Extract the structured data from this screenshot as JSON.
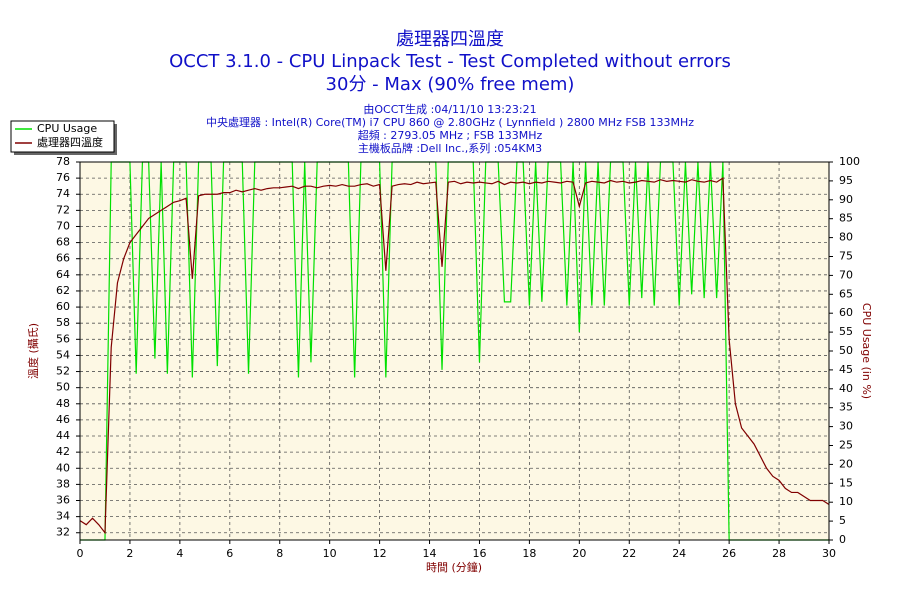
{
  "chart_data": {
    "type": "line",
    "title": "處理器四溫度",
    "subtitle": "OCCT 3.1.0 - CPU Linpack Test - Test Completed without errors",
    "subtitle2": "30分 - Max (90% free mem)",
    "info": [
      "由OCCT生成 :04/11/10 13:23:21",
      "中央處理器 : Intel(R) Core(TM) i7 CPU 860 @ 2.80GHz ( Lynnfield ) 2800 MHz FSB 133MHz",
      "超頻 : 2793.05 MHz ; FSB 133MHz",
      "主機板品牌 :Dell Inc.,系列 :054KM3"
    ],
    "xlabel": "時間 (分鐘)",
    "ylabel": "溫度 (攝氏)",
    "y2label": "CPU Usage (in %)",
    "grid": true,
    "legend": "upper left",
    "xlim": [
      0,
      30
    ],
    "xticks": [
      0,
      2,
      4,
      6,
      8,
      10,
      12,
      14,
      16,
      18,
      20,
      22,
      24,
      26,
      28,
      30
    ],
    "ylim": [
      31.1,
      78
    ],
    "yticks": [
      32,
      34,
      36,
      38,
      40,
      42,
      44,
      46,
      48,
      50,
      52,
      54,
      56,
      58,
      60,
      62,
      64,
      66,
      68,
      70,
      72,
      74,
      76,
      78
    ],
    "y2lim": [
      0,
      100
    ],
    "y2ticks": [
      0,
      5,
      10,
      15,
      20,
      25,
      30,
      35,
      40,
      45,
      50,
      55,
      60,
      65,
      70,
      75,
      80,
      85,
      90,
      95,
      100
    ],
    "x": [
      0,
      0.25,
      0.5,
      0.75,
      1,
      1.25,
      1.5,
      1.75,
      2,
      2.25,
      2.5,
      2.75,
      3,
      3.25,
      3.5,
      3.75,
      4,
      4.25,
      4.5,
      4.75,
      5,
      5.25,
      5.5,
      5.75,
      6,
      6.25,
      6.5,
      6.75,
      7,
      7.25,
      7.5,
      7.75,
      8,
      8.25,
      8.5,
      8.75,
      9,
      9.25,
      9.5,
      9.75,
      10,
      10.25,
      10.5,
      10.75,
      11,
      11.25,
      11.5,
      11.75,
      12,
      12.25,
      12.5,
      12.75,
      13,
      13.25,
      13.5,
      13.75,
      14,
      14.25,
      14.5,
      14.75,
      15,
      15.25,
      15.5,
      15.75,
      16,
      16.25,
      16.5,
      16.75,
      17,
      17.25,
      17.5,
      17.75,
      18,
      18.25,
      18.5,
      18.75,
      19,
      19.25,
      19.5,
      19.75,
      20,
      20.25,
      20.5,
      20.75,
      21,
      21.25,
      21.5,
      21.75,
      22,
      22.25,
      22.5,
      22.75,
      23,
      23.25,
      23.5,
      23.75,
      24,
      24.25,
      24.5,
      24.75,
      25,
      25.25,
      25.5,
      25.75,
      26,
      26.25,
      26.5,
      26.75,
      27,
      27.25,
      27.5,
      27.75,
      28,
      28.25,
      28.5,
      28.75,
      29,
      29.25,
      29.5,
      29.75,
      30
    ],
    "series": [
      {
        "name": "CPU Usage",
        "color": "#00e000",
        "axis": "y2",
        "values": [
          0,
          0,
          0,
          0,
          0,
          100,
          100,
          100,
          100,
          44,
          100,
          100,
          48,
          100,
          44,
          100,
          100,
          100,
          43,
          100,
          100,
          100,
          46,
          100,
          100,
          100,
          100,
          44,
          100,
          100,
          100,
          100,
          100,
          100,
          100,
          43,
          100,
          47,
          100,
          100,
          100,
          100,
          100,
          100,
          43,
          100,
          100,
          100,
          100,
          43,
          100,
          100,
          100,
          100,
          100,
          100,
          100,
          100,
          45,
          100,
          100,
          100,
          100,
          100,
          47,
          100,
          100,
          100,
          63,
          63,
          100,
          100,
          62,
          100,
          63,
          100,
          100,
          100,
          62,
          100,
          55,
          100,
          62,
          100,
          62,
          100,
          100,
          100,
          62,
          100,
          64,
          100,
          62,
          100,
          100,
          100,
          62,
          100,
          65,
          100,
          64,
          100,
          64,
          100,
          0,
          0,
          0,
          0,
          0,
          0,
          0,
          0,
          0,
          0,
          0,
          0,
          0,
          0,
          0,
          0,
          0
        ]
      },
      {
        "name": "處理器四溫度",
        "color": "#800000",
        "values": [
          33.5,
          33,
          33.8,
          33,
          32,
          55,
          63,
          66,
          68,
          69,
          70,
          71,
          71.5,
          72,
          72.5,
          73,
          73.2,
          73.5,
          63.5,
          73.8,
          74,
          74,
          74,
          74.2,
          74.2,
          74.5,
          74.3,
          74.5,
          74.7,
          74.5,
          74.7,
          74.8,
          74.8,
          74.9,
          75,
          74.7,
          75,
          75,
          74.8,
          75,
          75.1,
          75,
          75.2,
          75,
          75,
          75.2,
          75.3,
          75,
          75.2,
          64.5,
          75,
          75.2,
          75.3,
          75.2,
          75.5,
          75.3,
          75.4,
          75.5,
          65,
          75.5,
          75.6,
          75.3,
          75.5,
          75.4,
          75.5,
          75.4,
          75.3,
          75.6,
          75.2,
          75.5,
          75.4,
          75.5,
          75.3,
          75.5,
          75.4,
          75.6,
          75.5,
          75.4,
          75.6,
          75.5,
          72.5,
          75.4,
          75.6,
          75.5,
          75.4,
          75.7,
          75.5,
          75.6,
          75.4,
          75.5,
          75.7,
          75.6,
          75.5,
          75.8,
          75.6,
          75.7,
          75.6,
          75.5,
          75.8,
          75.6,
          75.5,
          75.7,
          75.5,
          76,
          56,
          48,
          45,
          44,
          43,
          41.5,
          40,
          39,
          38.5,
          37.5,
          37,
          37,
          36.5,
          36,
          36,
          36,
          35.5
        ]
      }
    ]
  }
}
